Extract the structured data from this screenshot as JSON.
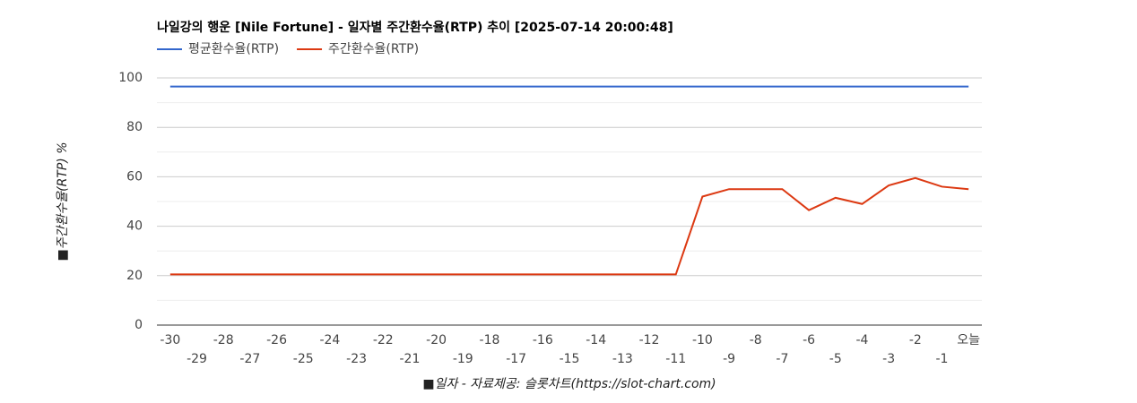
{
  "chart_data": {
    "type": "line",
    "title": "나일강의 행운 [Nile Fortune] - 일자별 주간환수율(RTP) 추이 [2025-07-14 20:00:48]",
    "x_label": "■일자 - 자료제공: 슬롯차트(https://slot-chart.com)",
    "y_label": "■주간환수율(RTP) %",
    "categories": [
      "-30",
      "-29",
      "-28",
      "-27",
      "-26",
      "-25",
      "-24",
      "-23",
      "-22",
      "-21",
      "-20",
      "-19",
      "-18",
      "-17",
      "-16",
      "-15",
      "-14",
      "-13",
      "-12",
      "-11",
      "-10",
      "-9",
      "-8",
      "-7",
      "-6",
      "-5",
      "-4",
      "-3",
      "-2",
      "-1",
      "오늘"
    ],
    "series": [
      {
        "name": "평균환수율(RTP)",
        "color": "#3366cc",
        "values": [
          96.5,
          96.5,
          96.5,
          96.5,
          96.5,
          96.5,
          96.5,
          96.5,
          96.5,
          96.5,
          96.5,
          96.5,
          96.5,
          96.5,
          96.5,
          96.5,
          96.5,
          96.5,
          96.5,
          96.5,
          96.5,
          96.5,
          96.5,
          96.5,
          96.5,
          96.5,
          96.5,
          96.5,
          96.5,
          96.5,
          96.5
        ]
      },
      {
        "name": "주간환수율(RTP)",
        "color": "#dc3912",
        "values": [
          20.5,
          20.5,
          20.5,
          20.5,
          20.5,
          20.5,
          20.5,
          20.5,
          20.5,
          20.5,
          20.5,
          20.5,
          20.5,
          20.5,
          20.5,
          20.5,
          20.5,
          20.5,
          20.5,
          20.5,
          52,
          55,
          55,
          55,
          46.5,
          51.5,
          49,
          56.5,
          59.5,
          56,
          55
        ]
      }
    ],
    "ylim": [
      0,
      100
    ],
    "yticks": [
      0,
      20,
      40,
      60,
      80,
      100
    ],
    "grid": true,
    "minor_grid": true,
    "legend": "top"
  }
}
